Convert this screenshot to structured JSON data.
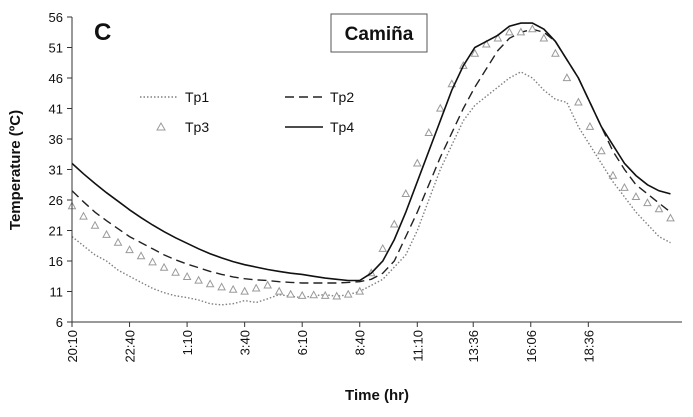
{
  "chart_data": {
    "type": "line",
    "panel_label": "C",
    "title": "Camiña",
    "xlabel": "Time (hr)",
    "ylabel": "Temperature (ºC)",
    "ylim": [
      6,
      56
    ],
    "yticks": [
      6,
      11,
      16,
      21,
      26,
      31,
      36,
      41,
      46,
      51,
      56
    ],
    "x_unit": "hours elapsed from first reading",
    "xlim": [
      0,
      26.5
    ],
    "x_tick_labels": [
      "20:10",
      "22:40",
      "1:10",
      "3:40",
      "6:10",
      "8:40",
      "11:10",
      "13:36",
      "16:06",
      "18:36"
    ],
    "x_tick_positions": [
      0,
      2.5,
      5,
      7.5,
      10,
      12.5,
      15,
      17.43,
      19.93,
      22.43
    ],
    "legend_position": "top-left",
    "grid": false,
    "series": [
      {
        "name": "Tp1",
        "style": "dotted",
        "color": "#808080",
        "points": [
          [
            0,
            20
          ],
          [
            0.5,
            18.5
          ],
          [
            1,
            17
          ],
          [
            1.5,
            16
          ],
          [
            2,
            14.5
          ],
          [
            2.5,
            13.5
          ],
          [
            3,
            12.5
          ],
          [
            3.5,
            11.5
          ],
          [
            4,
            10.8
          ],
          [
            4.5,
            10.3
          ],
          [
            5,
            10
          ],
          [
            5.5,
            9.6
          ],
          [
            6,
            9
          ],
          [
            6.5,
            8.8
          ],
          [
            7,
            9
          ],
          [
            7.5,
            9.5
          ],
          [
            8,
            9.2
          ],
          [
            8.5,
            9.8
          ],
          [
            9,
            10.5
          ],
          [
            9.5,
            10.2
          ],
          [
            10,
            10
          ],
          [
            10.5,
            10.3
          ],
          [
            11,
            10.5
          ],
          [
            11.5,
            10.2
          ],
          [
            12,
            10.5
          ],
          [
            12.5,
            11
          ],
          [
            13,
            12
          ],
          [
            13.5,
            13
          ],
          [
            14,
            15
          ],
          [
            14.5,
            17
          ],
          [
            15,
            21
          ],
          [
            15.5,
            26
          ],
          [
            16,
            31
          ],
          [
            16.5,
            35
          ],
          [
            17,
            39
          ],
          [
            17.5,
            41.5
          ],
          [
            18,
            43
          ],
          [
            18.5,
            44.5
          ],
          [
            19,
            46
          ],
          [
            19.5,
            47
          ],
          [
            20,
            46
          ],
          [
            20.5,
            44
          ],
          [
            21,
            42.5
          ],
          [
            21.5,
            42
          ],
          [
            22,
            38
          ],
          [
            22.5,
            35
          ],
          [
            23,
            32
          ],
          [
            23.5,
            29
          ],
          [
            24,
            26.5
          ],
          [
            24.5,
            24
          ],
          [
            25,
            22
          ],
          [
            25.5,
            20
          ],
          [
            26,
            19
          ]
        ]
      },
      {
        "name": "Tp2",
        "style": "dashed",
        "color": "#222222",
        "points": [
          [
            0,
            27.5
          ],
          [
            0.5,
            25.7
          ],
          [
            1,
            24
          ],
          [
            1.5,
            22.6
          ],
          [
            2,
            21.3
          ],
          [
            2.5,
            20
          ],
          [
            3,
            19
          ],
          [
            3.5,
            18
          ],
          [
            4,
            17
          ],
          [
            4.5,
            16.2
          ],
          [
            5,
            15.5
          ],
          [
            5.5,
            14.9
          ],
          [
            6,
            14.3
          ],
          [
            6.5,
            13.8
          ],
          [
            7,
            13.4
          ],
          [
            7.5,
            13.1
          ],
          [
            8,
            12.9
          ],
          [
            8.5,
            12.8
          ],
          [
            9,
            12.6
          ],
          [
            9.5,
            12.5
          ],
          [
            10,
            12.4
          ],
          [
            10.5,
            12.4
          ],
          [
            11,
            12.4
          ],
          [
            11.5,
            12.4
          ],
          [
            12,
            12.5
          ],
          [
            12.5,
            12.6
          ],
          [
            13,
            13
          ],
          [
            13.5,
            14
          ],
          [
            14,
            16
          ],
          [
            14.5,
            20
          ],
          [
            15,
            24
          ],
          [
            15.5,
            28.5
          ],
          [
            16,
            33
          ],
          [
            16.5,
            37
          ],
          [
            17,
            41
          ],
          [
            17.5,
            44.5
          ],
          [
            18,
            47.5
          ],
          [
            18.5,
            50.5
          ],
          [
            19,
            52.5
          ],
          [
            19.5,
            53.5
          ],
          [
            20,
            54
          ],
          [
            20.5,
            53.5
          ],
          [
            21,
            52
          ],
          [
            21.5,
            49
          ],
          [
            22,
            46
          ],
          [
            22.5,
            42
          ],
          [
            23,
            38
          ],
          [
            23.5,
            34
          ],
          [
            24,
            31
          ],
          [
            24.5,
            28.5
          ],
          [
            25,
            27
          ],
          [
            25.5,
            25.5
          ],
          [
            26,
            24
          ]
        ]
      },
      {
        "name": "Tp3",
        "style": "triangle-markers",
        "color": "#9a9a9a",
        "points": [
          [
            0,
            25
          ],
          [
            0.5,
            23.3
          ],
          [
            1,
            21.8
          ],
          [
            1.5,
            20.3
          ],
          [
            2,
            19
          ],
          [
            2.5,
            17.8
          ],
          [
            3,
            16.8
          ],
          [
            3.5,
            15.8
          ],
          [
            4,
            14.9
          ],
          [
            4.5,
            14.1
          ],
          [
            5,
            13.4
          ],
          [
            5.5,
            12.8
          ],
          [
            6,
            12.2
          ],
          [
            6.5,
            11.7
          ],
          [
            7,
            11.3
          ],
          [
            7.5,
            11
          ],
          [
            8,
            11.5
          ],
          [
            8.5,
            12
          ],
          [
            9,
            11
          ],
          [
            9.5,
            10.5
          ],
          [
            10,
            10.3
          ],
          [
            10.5,
            10.4
          ],
          [
            11,
            10.3
          ],
          [
            11.5,
            10.2
          ],
          [
            12,
            10.5
          ],
          [
            12.5,
            11
          ],
          [
            13,
            14
          ],
          [
            13.5,
            18
          ],
          [
            14,
            22
          ],
          [
            14.5,
            27
          ],
          [
            15,
            32
          ],
          [
            15.5,
            37
          ],
          [
            16,
            41
          ],
          [
            16.5,
            45
          ],
          [
            17,
            48
          ],
          [
            17.5,
            50
          ],
          [
            18,
            51.5
          ],
          [
            18.5,
            52.5
          ],
          [
            19,
            53.5
          ],
          [
            19.5,
            53.5
          ],
          [
            20,
            54
          ],
          [
            20.5,
            52.5
          ],
          [
            21,
            50
          ],
          [
            21.5,
            46
          ],
          [
            22,
            42
          ],
          [
            22.5,
            38
          ],
          [
            23,
            34
          ],
          [
            23.5,
            30
          ],
          [
            24,
            28
          ],
          [
            24.5,
            26.5
          ],
          [
            25,
            25.5
          ],
          [
            25.5,
            24.5
          ],
          [
            26,
            23
          ]
        ]
      },
      {
        "name": "Tp4",
        "style": "solid",
        "color": "#111111",
        "points": [
          [
            0,
            32
          ],
          [
            0.5,
            30.3
          ],
          [
            1,
            28.7
          ],
          [
            1.5,
            27.2
          ],
          [
            2,
            25.8
          ],
          [
            2.5,
            24.4
          ],
          [
            3,
            23.1
          ],
          [
            3.5,
            21.9
          ],
          [
            4,
            20.8
          ],
          [
            4.5,
            19.8
          ],
          [
            5,
            18.9
          ],
          [
            5.5,
            18
          ],
          [
            6,
            17.2
          ],
          [
            6.5,
            16.5
          ],
          [
            7,
            15.9
          ],
          [
            7.5,
            15.4
          ],
          [
            8,
            15
          ],
          [
            8.5,
            14.6
          ],
          [
            9,
            14.3
          ],
          [
            9.5,
            14
          ],
          [
            10,
            13.8
          ],
          [
            10.5,
            13.5
          ],
          [
            11,
            13.2
          ],
          [
            11.5,
            13
          ],
          [
            12,
            12.8
          ],
          [
            12.5,
            12.8
          ],
          [
            13,
            14
          ],
          [
            13.5,
            16
          ],
          [
            14,
            19.5
          ],
          [
            14.5,
            24
          ],
          [
            15,
            29
          ],
          [
            15.5,
            34
          ],
          [
            16,
            39
          ],
          [
            16.5,
            44
          ],
          [
            17,
            48
          ],
          [
            17.5,
            51
          ],
          [
            18,
            52
          ],
          [
            18.5,
            53
          ],
          [
            19,
            54.5
          ],
          [
            19.5,
            55
          ],
          [
            20,
            55
          ],
          [
            20.5,
            54
          ],
          [
            21,
            52
          ],
          [
            21.5,
            49
          ],
          [
            22,
            46
          ],
          [
            22.5,
            42
          ],
          [
            23,
            38
          ],
          [
            23.5,
            35
          ],
          [
            24,
            32
          ],
          [
            24.5,
            30
          ],
          [
            25,
            28.5
          ],
          [
            25.5,
            27.5
          ],
          [
            26,
            27
          ]
        ]
      }
    ]
  }
}
